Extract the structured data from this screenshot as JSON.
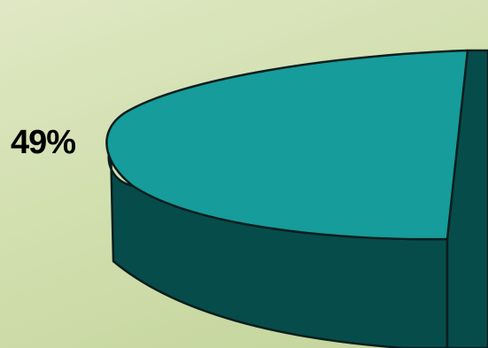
{
  "chart_data": {
    "type": "pie",
    "style": "3d",
    "slices": [
      {
        "label": "49%",
        "value": 49,
        "color": "#169c9a",
        "side_color": "#064c4b"
      }
    ],
    "title": "",
    "legend": "none"
  }
}
